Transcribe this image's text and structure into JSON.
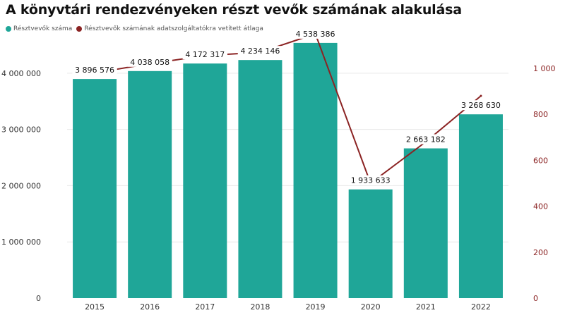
{
  "chart_data": {
    "type": "bar",
    "title": "A könyvtári rendezvényeken részt vevők számának alakulása",
    "categories": [
      "2015",
      "2016",
      "2017",
      "2018",
      "2019",
      "2020",
      "2021",
      "2022"
    ],
    "series": [
      {
        "name": "Résztvevők száma",
        "type": "bar",
        "axis": "left",
        "color": "#1fa698",
        "values": [
          3896576,
          4038058,
          4172317,
          4234146,
          4538386,
          1933633,
          2663182,
          3268630
        ],
        "data_labels": [
          "3 896 576",
          "4 038 058",
          "4 172 317",
          "4 234 146",
          "4 538 386",
          "1 933 633",
          "2 663 182",
          "3 268 630"
        ]
      },
      {
        "name": "Résztvevők számának adatszolgáltatókra vetített átlaga",
        "type": "line",
        "axis": "right",
        "color": "#8b2323",
        "values": [
          980,
          1020,
          1055,
          1070,
          1150,
          500,
          680,
          880
        ]
      }
    ],
    "y_left": {
      "min": 0,
      "max": 4700000,
      "ticks": [
        0,
        1000000,
        2000000,
        3000000,
        4000000
      ],
      "tick_labels": [
        "0",
        "1 000 000",
        "2 000 000",
        "3 000 000",
        "4 000 000"
      ]
    },
    "y_right": {
      "min": 0,
      "max": 1150,
      "ticks": [
        0,
        200,
        400,
        600,
        800,
        1000
      ],
      "tick_labels": [
        "0",
        "200",
        "400",
        "600",
        "800",
        "1 000"
      ],
      "color": "#8b2323"
    },
    "grid": true,
    "legend_position": "top-left"
  }
}
